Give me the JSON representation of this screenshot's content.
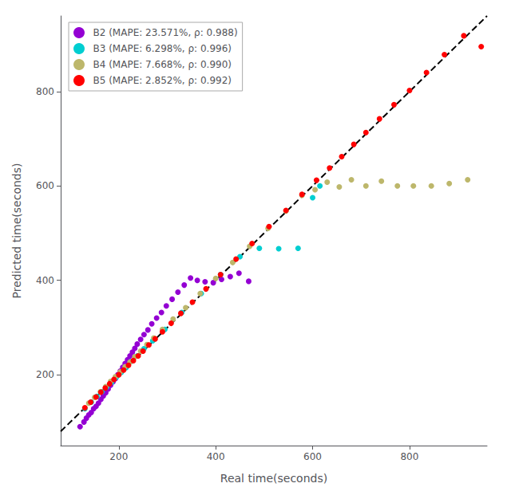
{
  "chart_data": {
    "type": "scatter",
    "xlabel": "Real time(seconds)",
    "ylabel": "Predicted time(seconds)",
    "xlim": [
      80,
      960
    ],
    "ylim": [
      50,
      960
    ],
    "xticks": [
      200,
      400,
      600,
      800
    ],
    "yticks": [
      200,
      400,
      600,
      800
    ],
    "grid": false,
    "legend": "upper left",
    "series": [
      {
        "type": "line",
        "line_style": "dashed",
        "color": "#000000",
        "x": [
          80,
          960
        ],
        "values": [
          80,
          960
        ]
      },
      {
        "name": "B2 (MAPE: 23.571%, ρ: 0.988)",
        "color": "#9400D3",
        "x": [
          120,
          128,
          133,
          138,
          143,
          148,
          153,
          158,
          163,
          168,
          173,
          178,
          183,
          188,
          193,
          198,
          203,
          208,
          213,
          218,
          223,
          228,
          233,
          238,
          245,
          252,
          260,
          268,
          278,
          288,
          298,
          310,
          322,
          335,
          348,
          362,
          378,
          395,
          412,
          430,
          448,
          468
        ],
        "values": [
          90,
          100,
          108,
          115,
          120,
          128,
          133,
          140,
          148,
          155,
          162,
          170,
          178,
          185,
          192,
          200,
          208,
          216,
          224,
          232,
          240,
          248,
          256,
          265,
          275,
          285,
          295,
          308,
          320,
          332,
          346,
          360,
          375,
          390,
          405,
          400,
          397,
          395,
          402,
          408,
          415,
          398
        ]
      },
      {
        "name": "B3 (MAPE: 6.298%, ρ: 0.996)",
        "color": "#00CED1",
        "x": [
          130,
          143,
          155,
          165,
          175,
          185,
          195,
          205,
          215,
          225,
          238,
          252,
          270,
          295,
          330,
          370,
          410,
          450,
          490,
          530,
          570,
          600,
          615
        ],
        "values": [
          128,
          142,
          154,
          164,
          174,
          184,
          195,
          205,
          215,
          228,
          240,
          255,
          272,
          296,
          332,
          372,
          412,
          450,
          468,
          467,
          468,
          575,
          600
        ]
      },
      {
        "name": "B4 (MAPE: 7.668%, ρ: 0.990)",
        "color": "#BDB76B",
        "x": [
          138,
          150,
          162,
          173,
          183,
          193,
          203,
          213,
          223,
          233,
          245,
          258,
          272,
          290,
          312,
          338,
          368,
          400,
          435,
          470,
          508,
          545,
          578,
          605,
          630,
          655,
          680,
          710,
          742,
          775,
          808,
          845,
          882,
          920
        ],
        "values": [
          140,
          152,
          164,
          175,
          186,
          196,
          206,
          217,
          227,
          238,
          250,
          264,
          278,
          296,
          318,
          342,
          372,
          404,
          438,
          472,
          510,
          547,
          580,
          592,
          608,
          598,
          613,
          600,
          610,
          600,
          600,
          600,
          605,
          613
        ]
      },
      {
        "name": "B5 (MAPE: 2.852%, ρ: 0.992)",
        "color": "#FF0000",
        "x": [
          130,
          142,
          153,
          163,
          172,
          181,
          190,
          200,
          210,
          220,
          230,
          240,
          250,
          262,
          275,
          290,
          308,
          328,
          352,
          380,
          410,
          442,
          475,
          510,
          545,
          578,
          608,
          635,
          660,
          685,
          710,
          738,
          768,
          800,
          835,
          872,
          912,
          948
        ],
        "values": [
          130,
          142,
          153,
          163,
          172,
          181,
          190,
          200,
          210,
          220,
          230,
          240,
          250,
          263,
          276,
          291,
          309,
          330,
          354,
          382,
          412,
          445,
          478,
          514,
          548,
          582,
          612,
          638,
          662,
          688,
          713,
          742,
          772,
          802,
          840,
          878,
          918,
          895
        ]
      }
    ]
  }
}
